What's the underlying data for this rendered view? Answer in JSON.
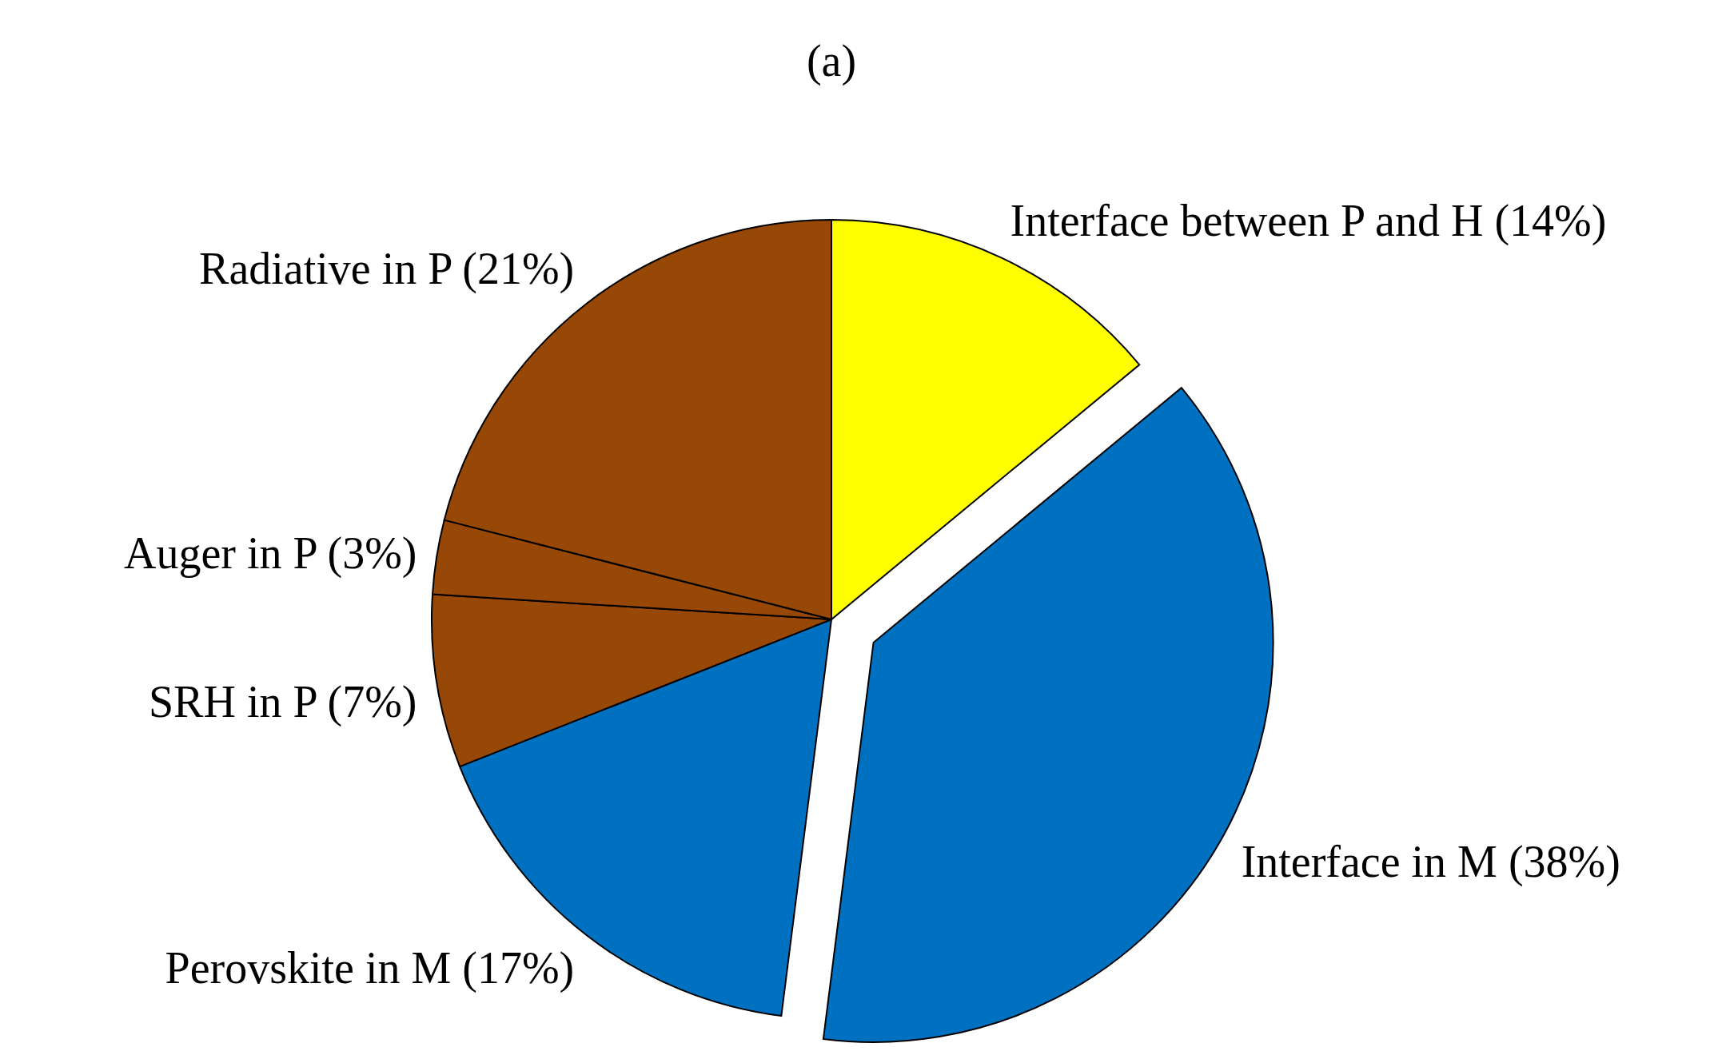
{
  "chart_data": {
    "type": "pie",
    "title": "(a)",
    "categories": [
      "Interface between P and H (14%)",
      "Interface in M (38%)",
      "Perovskite in M (17%)",
      "SRH in P (7%)",
      "Auger in P (3%)",
      "Radiative in P (21%)"
    ],
    "values": [
      14,
      38,
      17,
      7,
      3,
      21
    ],
    "colors": [
      "#ffff00",
      "#0070c0",
      "#0070c0",
      "#974706",
      "#974706",
      "#974706"
    ]
  }
}
